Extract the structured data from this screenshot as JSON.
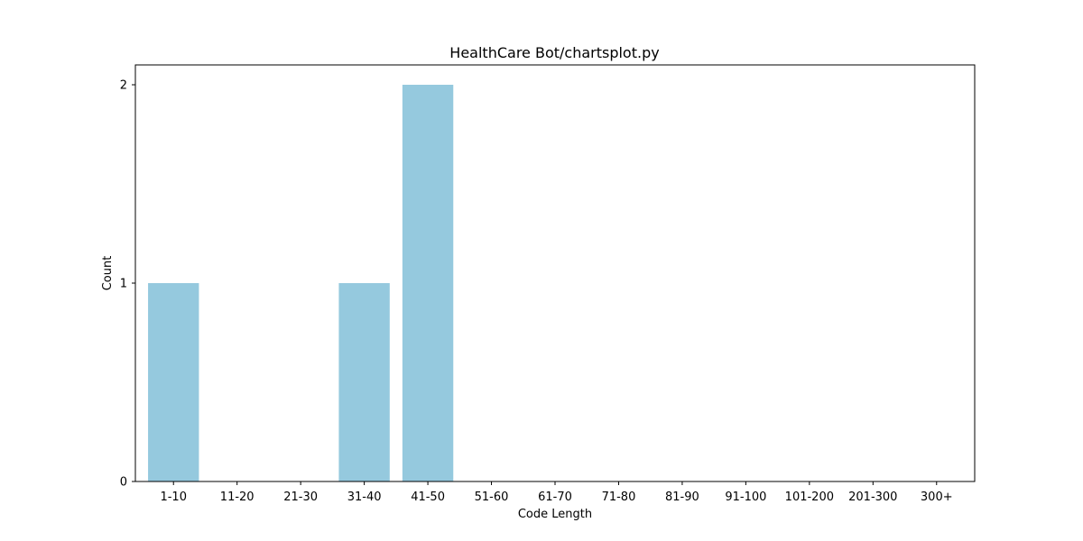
{
  "chart_data": {
    "type": "bar",
    "title": "HealthCare Bot/chartsplot.py",
    "xlabel": "Code Length",
    "ylabel": "Count",
    "categories": [
      "1-10",
      "11-20",
      "21-30",
      "31-40",
      "41-50",
      "51-60",
      "61-70",
      "71-80",
      "81-90",
      "91-100",
      "101-200",
      "201-300",
      "300+"
    ],
    "values": [
      1,
      0,
      0,
      1,
      2,
      0,
      0,
      0,
      0,
      0,
      0,
      0,
      0
    ],
    "ylim": [
      0,
      2.1
    ],
    "yticks": [
      0,
      1,
      2
    ],
    "grid": false,
    "bar_color": "#95c9de",
    "axis_color": "#000000"
  }
}
